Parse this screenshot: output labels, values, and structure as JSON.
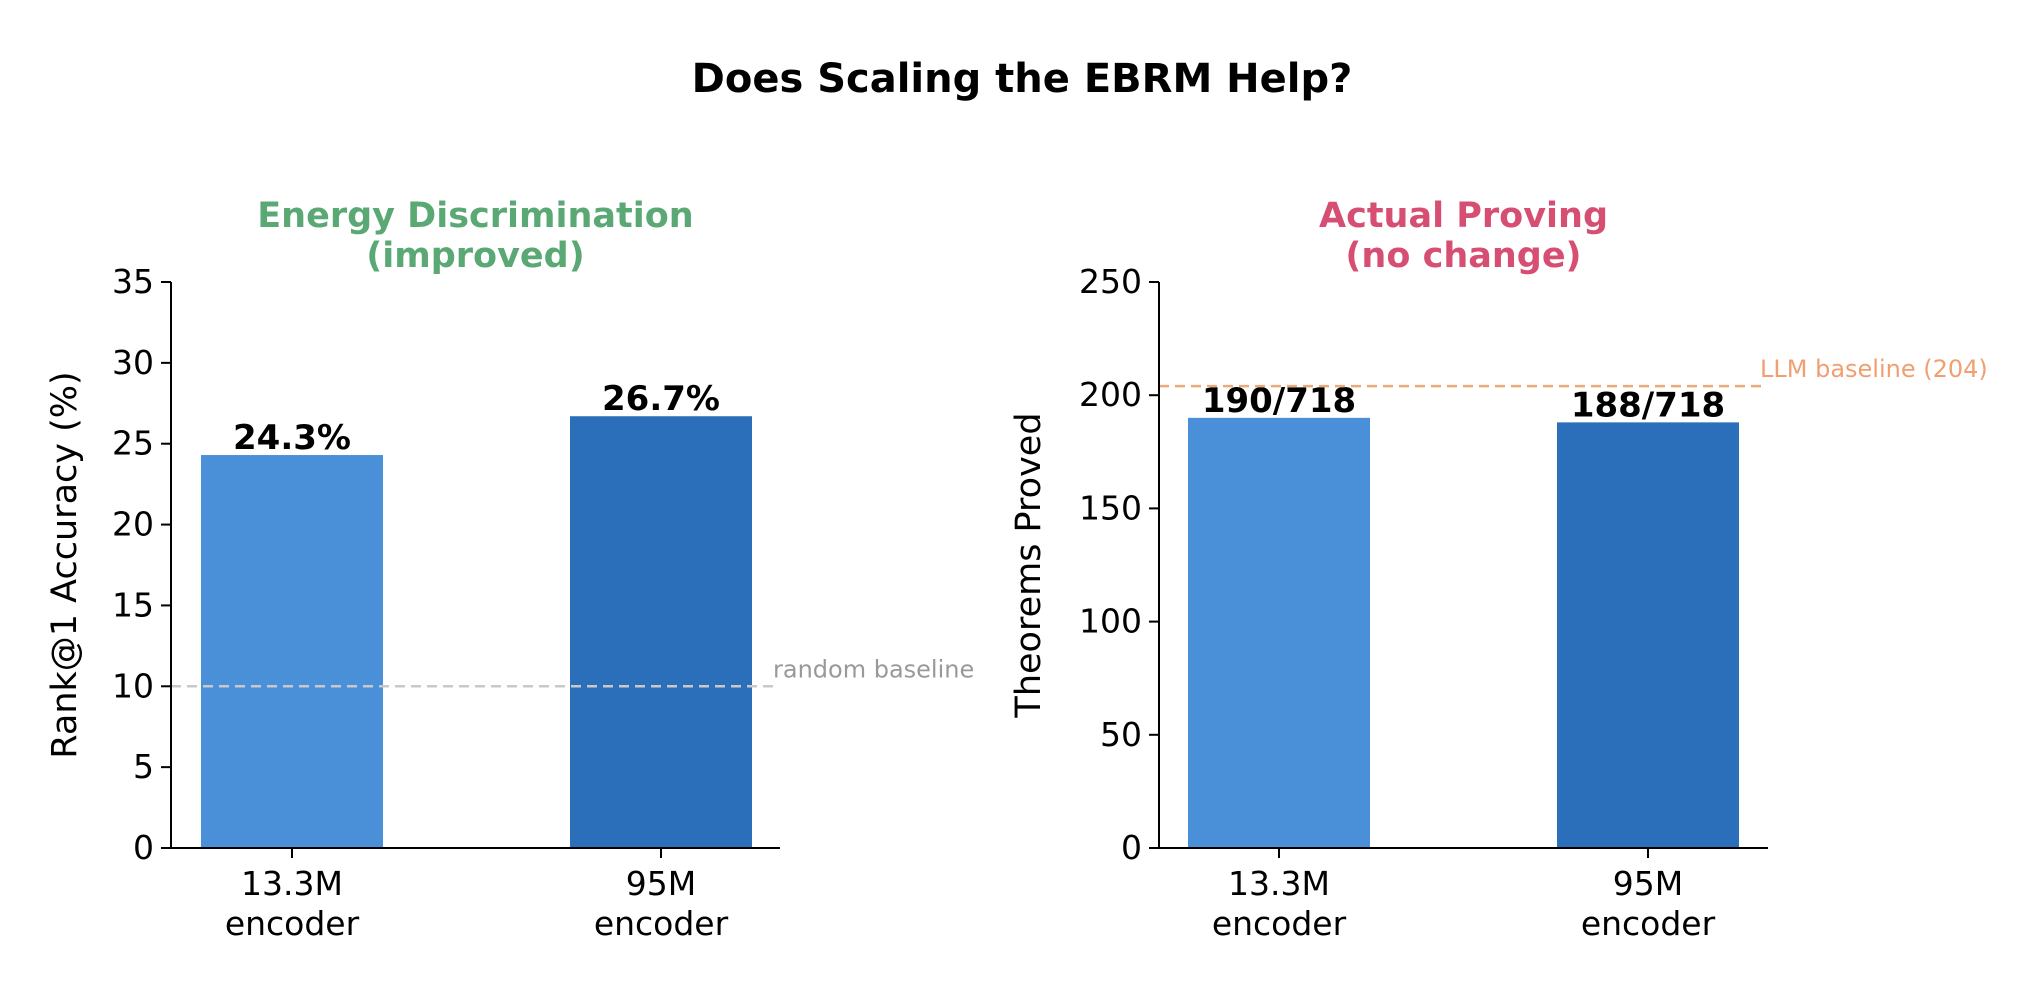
{
  "figure": {
    "title": "Does Scaling the EBRM Help?"
  },
  "chart_data": [
    {
      "type": "bar",
      "title": "Energy Discrimination\n(improved)",
      "title_color": "#5aa874",
      "ylabel": "Rank@1 Accuracy (%)",
      "xlabel": "",
      "ylim": [
        0,
        35
      ],
      "yticks": [
        0,
        5,
        10,
        15,
        20,
        25,
        30,
        35
      ],
      "categories": [
        "13.3M\nencoder",
        "95M\nencoder"
      ],
      "values": [
        24.3,
        26.7
      ],
      "value_labels": [
        "24.3%",
        "26.7%"
      ],
      "bar_colors": [
        "#4a90d9",
        "#2b6fba"
      ],
      "reference_line": {
        "value": 10,
        "label": "random baseline",
        "color": "#c8c8c8",
        "label_color": "#999999"
      },
      "grid": false
    },
    {
      "type": "bar",
      "title": "Actual Proving\n(no change)",
      "title_color": "#d64f72",
      "ylabel": "Theorems Proved",
      "xlabel": "",
      "ylim": [
        0,
        250
      ],
      "yticks": [
        0,
        50,
        100,
        150,
        200,
        250
      ],
      "categories": [
        "13.3M\nencoder",
        "95M\nencoder"
      ],
      "values": [
        190,
        188
      ],
      "value_labels": [
        "190/718",
        "188/718"
      ],
      "bar_colors": [
        "#4a90d9",
        "#2b6fba"
      ],
      "reference_line": {
        "value": 204,
        "label": "LLM baseline (204)",
        "color": "#f0a878",
        "label_color": "#f0a070"
      },
      "grid": false
    }
  ]
}
